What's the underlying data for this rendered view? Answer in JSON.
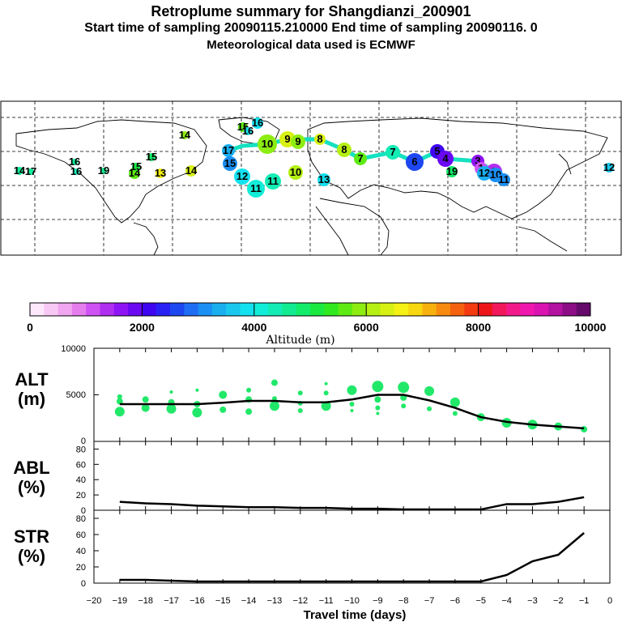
{
  "header": {
    "title": "Retroplume summary for Shangdianzi_200901",
    "line2": "Start time of sampling 20090115.210000     End time of sampling 20090116.     0",
    "line3": "Meteorological data used is ECMWF"
  },
  "colorbar": {
    "colors": [
      "#fde7fb",
      "#f8c8f5",
      "#f1a6f0",
      "#e57ded",
      "#cf52f3",
      "#b02ef0",
      "#8f14f5",
      "#6a0af2",
      "#3f07ef",
      "#2a22f5",
      "#1d47f0",
      "#1f6df3",
      "#1b8ff3",
      "#19afef",
      "#1ac8ee",
      "#14e1ef",
      "#12edd8",
      "#14ecb6",
      "#12eb91",
      "#12ec6a",
      "#1ae940",
      "#30e91e",
      "#5eeb14",
      "#8ded12",
      "#b5ef14",
      "#d8f115",
      "#f5f114",
      "#f7d70f",
      "#f7b10f",
      "#f78a0f",
      "#f5620f",
      "#f33a10",
      "#ee1518",
      "#f2175a",
      "#f21a8a",
      "#ef17ad",
      "#d914b0",
      "#b311a0",
      "#8c0d86",
      "#65096a"
    ],
    "tick_labels": [
      "0",
      "2000",
      "4000",
      "6000",
      "8000",
      "10000"
    ],
    "label": "Altitude (m)"
  },
  "panels": {
    "alt": {
      "label_line1": "ALT",
      "label_line2": "(m)",
      "yticks": [
        "10000",
        "5000",
        "0"
      ]
    },
    "abl": {
      "label_line1": "ABL",
      "label_line2": "(%)",
      "yticks": [
        "80",
        "60",
        "40",
        "20",
        "0"
      ]
    },
    "str": {
      "label_line1": "STR",
      "label_line2": "(%)",
      "yticks": [
        "80",
        "60",
        "40",
        "20",
        "0"
      ]
    }
  },
  "xaxis": {
    "label": "Travel time (days)",
    "tick_labels": [
      "−20",
      "−19",
      "−18",
      "−17",
      "−16",
      "−15",
      "−14",
      "−13",
      "−12",
      "−11",
      "−10",
      "−9",
      "−8",
      "−7",
      "−6",
      "−5",
      "−4",
      "−3",
      "−2",
      "−1",
      "0"
    ]
  },
  "map_labels": [
    {
      "text": "14",
      "color": "#12ec9a"
    },
    {
      "text": "17",
      "color": "#12ec9a"
    },
    {
      "text": "16",
      "color": "#12ec9a"
    },
    {
      "text": "16",
      "color": "#14ecb6"
    },
    {
      "text": "19",
      "color": "#12eb91"
    },
    {
      "text": "14",
      "color": "#5eeb14"
    },
    {
      "text": "15",
      "color": "#1ae940"
    },
    {
      "text": "15",
      "color": "#12ec6a"
    },
    {
      "text": "13",
      "color": "#f5f114"
    },
    {
      "text": "14",
      "color": "#d8f115"
    },
    {
      "text": "14",
      "color": "#8ded12"
    },
    {
      "text": "15",
      "color": "#5eeb14"
    },
    {
      "text": "16",
      "color": "#14e1ef"
    },
    {
      "text": "16",
      "color": "#14e1ef"
    },
    {
      "text": "17",
      "color": "#19afef"
    },
    {
      "text": "15",
      "color": "#1b8ff3"
    },
    {
      "text": "12",
      "color": "#14e1ef"
    },
    {
      "text": "11",
      "color": "#12edd8"
    },
    {
      "text": "11",
      "color": "#14ecb6"
    },
    {
      "text": "10",
      "color": "#b5ef14"
    },
    {
      "text": "10",
      "color": "#8ded12"
    },
    {
      "text": "9",
      "color": "#d8f115"
    },
    {
      "text": "9",
      "color": "#8ded12"
    },
    {
      "text": "8",
      "color": "#d8f115"
    },
    {
      "text": "8",
      "color": "#b5ef14"
    },
    {
      "text": "7",
      "color": "#5eeb14"
    },
    {
      "text": "7",
      "color": "#14ecb6"
    },
    {
      "text": "6",
      "color": "#1d47f0"
    },
    {
      "text": "5",
      "color": "#3f07ef"
    },
    {
      "text": "4",
      "color": "#6a0af2"
    },
    {
      "text": "3",
      "color": "#8f14f5"
    },
    {
      "text": "2",
      "color": "#b02ef0"
    },
    {
      "text": "1",
      "color": "#cf52f3"
    },
    {
      "text": "19",
      "color": "#12ec6a"
    },
    {
      "text": "12",
      "color": "#19afef"
    },
    {
      "text": "10",
      "color": "#1b8ff3"
    },
    {
      "text": "11",
      "color": "#1b8ff3"
    },
    {
      "text": "12",
      "color": "#1ac8ee"
    },
    {
      "text": "13",
      "color": "#14e1ef"
    }
  ],
  "chart_data": [
    {
      "type": "scatter",
      "title": "ALT",
      "ylabel": "(m)",
      "xlabel": "Travel time (days)",
      "xlim": [
        -20,
        0
      ],
      "ylim": [
        0,
        10000
      ],
      "mean_line": {
        "x": [
          -19,
          -18,
          -17,
          -16,
          -15,
          -14,
          -13,
          -12,
          -11,
          -10,
          -9,
          -8,
          -7,
          -6,
          -5,
          -4,
          -3,
          -2,
          -1
        ],
        "y": [
          4000,
          4000,
          4000,
          4000,
          4150,
          4350,
          4350,
          4200,
          4200,
          4500,
          5000,
          5000,
          4400,
          3600,
          2600,
          2100,
          1800,
          1600,
          1400
        ]
      },
      "points": [
        {
          "x": -19,
          "y": 3200,
          "size": 6
        },
        {
          "x": -19,
          "y": 4300,
          "size": 4
        },
        {
          "x": -19,
          "y": 4800,
          "size": 3
        },
        {
          "x": -18,
          "y": 3600,
          "size": 5
        },
        {
          "x": -18,
          "y": 4500,
          "size": 4
        },
        {
          "x": -17,
          "y": 3500,
          "size": 6
        },
        {
          "x": -17,
          "y": 4200,
          "size": 4
        },
        {
          "x": -17,
          "y": 5300,
          "size": 2
        },
        {
          "x": -16,
          "y": 3100,
          "size": 6
        },
        {
          "x": -16,
          "y": 4000,
          "size": 4
        },
        {
          "x": -16,
          "y": 5500,
          "size": 2
        },
        {
          "x": -15,
          "y": 3400,
          "size": 4
        },
        {
          "x": -15,
          "y": 5000,
          "size": 5
        },
        {
          "x": -14,
          "y": 3200,
          "size": 4
        },
        {
          "x": -14,
          "y": 4500,
          "size": 4
        },
        {
          "x": -14,
          "y": 5500,
          "size": 3
        },
        {
          "x": -13,
          "y": 3800,
          "size": 6
        },
        {
          "x": -13,
          "y": 6300,
          "size": 4
        },
        {
          "x": -13,
          "y": 4600,
          "size": 3
        },
        {
          "x": -12,
          "y": 3300,
          "size": 3
        },
        {
          "x": -12,
          "y": 4100,
          "size": 3
        },
        {
          "x": -12,
          "y": 5200,
          "size": 3
        },
        {
          "x": -11,
          "y": 3800,
          "size": 6
        },
        {
          "x": -11,
          "y": 5200,
          "size": 3
        },
        {
          "x": -11,
          "y": 6200,
          "size": 2
        },
        {
          "x": -10,
          "y": 5500,
          "size": 6
        },
        {
          "x": -10,
          "y": 4000,
          "size": 3
        },
        {
          "x": -10,
          "y": 3300,
          "size": 2
        },
        {
          "x": -9,
          "y": 5900,
          "size": 7
        },
        {
          "x": -9,
          "y": 4500,
          "size": 4
        },
        {
          "x": -9,
          "y": 3600,
          "size": 3
        },
        {
          "x": -9,
          "y": 3000,
          "size": 2
        },
        {
          "x": -8,
          "y": 5800,
          "size": 7
        },
        {
          "x": -8,
          "y": 4700,
          "size": 4
        },
        {
          "x": -8,
          "y": 3800,
          "size": 3
        },
        {
          "x": -7,
          "y": 5400,
          "size": 6
        },
        {
          "x": -7,
          "y": 3500,
          "size": 3
        },
        {
          "x": -6,
          "y": 4200,
          "size": 6
        },
        {
          "x": -6,
          "y": 3000,
          "size": 3
        },
        {
          "x": -5,
          "y": 2600,
          "size": 5
        },
        {
          "x": -4,
          "y": 2000,
          "size": 6
        },
        {
          "x": -3,
          "y": 1800,
          "size": 6
        },
        {
          "x": -2,
          "y": 1600,
          "size": 5
        },
        {
          "x": -1,
          "y": 1300,
          "size": 4
        }
      ]
    },
    {
      "type": "line",
      "title": "ABL",
      "ylabel": "(%)",
      "xlabel": "Travel time (days)",
      "xlim": [
        -20,
        0
      ],
      "ylim": [
        0,
        90
      ],
      "x": [
        -19,
        -18,
        -17,
        -16,
        -15,
        -14,
        -13,
        -12,
        -11,
        -10,
        -9,
        -8,
        -7,
        -6,
        -5,
        -4,
        -3,
        -2,
        -1
      ],
      "y": [
        11,
        9,
        8,
        6,
        5,
        4,
        4,
        3,
        3,
        2,
        2,
        1,
        1,
        1,
        1,
        8,
        8,
        11,
        17
      ]
    },
    {
      "type": "line",
      "title": "STR",
      "ylabel": "(%)",
      "xlabel": "Travel time (days)",
      "xlim": [
        -20,
        0
      ],
      "ylim": [
        0,
        90
      ],
      "x": [
        -19,
        -18,
        -17,
        -16,
        -15,
        -14,
        -13,
        -12,
        -11,
        -10,
        -9,
        -8,
        -7,
        -6,
        -5,
        -4,
        -3,
        -2,
        -1
      ],
      "y": [
        4,
        4,
        3,
        2,
        2,
        2,
        2,
        2,
        2,
        2,
        2,
        2,
        2,
        2,
        2,
        10,
        27,
        35,
        62
      ]
    }
  ]
}
